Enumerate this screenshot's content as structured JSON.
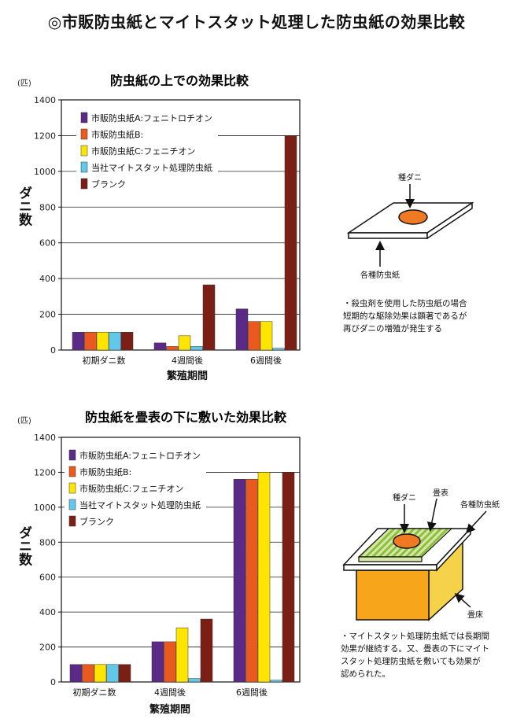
{
  "title": "◎市販防虫紙とマイトスタット処理した防虫紙の効果比較",
  "colors": {
    "series": [
      "#5b2a86",
      "#ea5a1e",
      "#ffe500",
      "#62c8ea",
      "#7b1f16"
    ],
    "tatami_base": "#f7a51b",
    "tatami_side": "#f5d24a",
    "tatami_mat": "#a7cc62",
    "mite_ball": "#f07a24"
  },
  "chart_data": [
    {
      "type": "bar",
      "title": "防虫紙の上での効果比較",
      "unit": "(匹)",
      "ylabel": "ダニ数",
      "xlabel": "繁殖期間",
      "categories": [
        "初期ダニ数",
        "4週間後",
        "6週間後"
      ],
      "ylim": [
        0,
        1400
      ],
      "yticks": [
        0,
        200,
        400,
        600,
        800,
        1000,
        1200,
        1400
      ],
      "grid": true,
      "legend_position": "top-left",
      "series": [
        {
          "name": "市販防虫紙A:フェニトロチオン",
          "values": [
            100,
            40,
            230
          ]
        },
        {
          "name": "市販防虫紙B:",
          "values": [
            100,
            20,
            160
          ]
        },
        {
          "name": "市販防虫紙C:フェニチオン",
          "values": [
            100,
            80,
            160
          ]
        },
        {
          "name": "当社マイトスタット処理防虫紙",
          "values": [
            100,
            20,
            10
          ]
        },
        {
          "name": "ブランク",
          "values": [
            100,
            365,
            1200
          ]
        }
      ]
    },
    {
      "type": "bar",
      "title": "防虫紙を畳表の下に敷いた効果比較",
      "unit": "(匹)",
      "ylabel": "ダニ数",
      "xlabel": "繁殖期間",
      "categories": [
        "初期ダニ数",
        "4週間後",
        "6週間後"
      ],
      "ylim": [
        0,
        1400
      ],
      "yticks": [
        0,
        200,
        400,
        600,
        800,
        1000,
        1200,
        1400
      ],
      "grid": true,
      "legend_position": "top-left",
      "series": [
        {
          "name": "市販防虫紙A:フェニトロチオン",
          "values": [
            100,
            230,
            1160
          ]
        },
        {
          "name": "市販防虫紙B:",
          "values": [
            100,
            230,
            1160
          ]
        },
        {
          "name": "市販防虫紙C:フェニチオン",
          "values": [
            100,
            310,
            1200
          ]
        },
        {
          "name": "当社マイトスタット処理防虫紙",
          "values": [
            100,
            20,
            10
          ]
        },
        {
          "name": "ブランク",
          "values": [
            100,
            360,
            1200
          ]
        }
      ]
    }
  ],
  "diagram1": {
    "label_top": "種ダニ",
    "label_bottom": "各種防虫紙",
    "note": [
      "・殺虫剤を使用した防虫紙の場合",
      "短期的な駆除効果は顕著であるが",
      "再びダニの増殖が発生する"
    ]
  },
  "diagram2": {
    "label_mite": "種ダニ",
    "label_mat": "畳表",
    "label_paper": "各種防虫紙",
    "label_floor": "畳床",
    "note": [
      "・マイトスタット処理防虫紙では長期間",
      "効果が継続する。又、畳表の下にマイト",
      "スタット処理防虫紙を敷いても効果が",
      "認められた。"
    ]
  }
}
